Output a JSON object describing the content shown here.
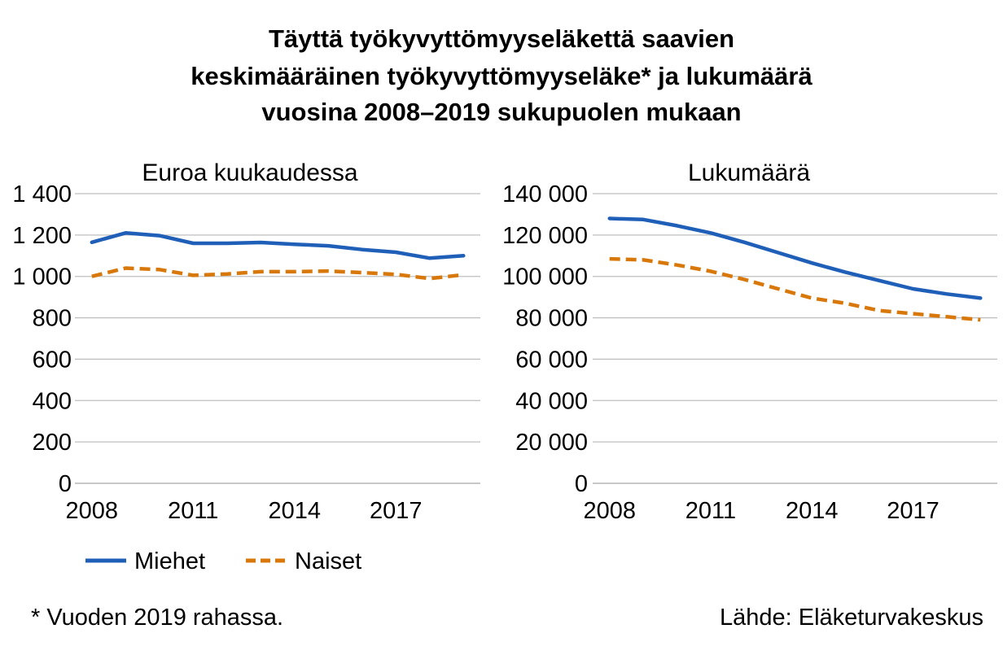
{
  "title_lines": [
    "Täyttä työkyvyttömyyseläkettä saavien",
    "keskimääräinen työkyvyttömyyseläke* ja lukumäärä",
    "vuosina 2008–2019 sukupuolen mukaan"
  ],
  "footnote": "* Vuoden 2019 rahassa.",
  "source": "Lähde: Eläketurvakeskus",
  "colors": {
    "miehet": "#1f5fb8",
    "naiset": "#d8780a",
    "grid": "#bfbfbf"
  },
  "chart_data": [
    {
      "type": "line",
      "title": "Euroa kuukaudessa",
      "x": [
        2008,
        2009,
        2010,
        2011,
        2012,
        2013,
        2014,
        2015,
        2016,
        2017,
        2018,
        2019
      ],
      "x_tick_labels": [
        "2008",
        "2011",
        "2014",
        "2017"
      ],
      "y_tick_labels": [
        "0",
        "200",
        "400",
        "600",
        "800",
        "1 000",
        "1 200",
        "1 400"
      ],
      "ylim": [
        0,
        1400
      ],
      "grid": true,
      "series": [
        {
          "name": "Miehet",
          "style": "solid",
          "values": [
            1165,
            1210,
            1197,
            1160,
            1160,
            1164,
            1155,
            1148,
            1130,
            1117,
            1088,
            1100
          ]
        },
        {
          "name": "Naiset",
          "style": "dashed",
          "values": [
            1000,
            1040,
            1033,
            1005,
            1012,
            1023,
            1023,
            1026,
            1018,
            1010,
            990,
            1008
          ]
        }
      ]
    },
    {
      "type": "line",
      "title": "Lukumäärä",
      "x": [
        2008,
        2009,
        2010,
        2011,
        2012,
        2013,
        2014,
        2015,
        2016,
        2017,
        2018,
        2019
      ],
      "x_tick_labels": [
        "2008",
        "2011",
        "2014",
        "2017"
      ],
      "y_tick_labels": [
        "0",
        "20 000",
        "40 000",
        "60 000",
        "80 000",
        "100 000",
        "120 000",
        "140 000"
      ],
      "ylim": [
        0,
        140000
      ],
      "grid": true,
      "series": [
        {
          "name": "Miehet",
          "style": "solid",
          "values": [
            128000,
            127500,
            124500,
            121000,
            116500,
            111500,
            106500,
            102000,
            98000,
            94000,
            91500,
            89500
          ]
        },
        {
          "name": "Naiset",
          "style": "dashed",
          "values": [
            108500,
            108000,
            105500,
            102500,
            98500,
            94000,
            89500,
            87000,
            83500,
            82000,
            80500,
            79000
          ]
        }
      ]
    }
  ],
  "legend": [
    {
      "label": "Miehet",
      "style": "solid"
    },
    {
      "label": "Naiset",
      "style": "dashed"
    }
  ]
}
